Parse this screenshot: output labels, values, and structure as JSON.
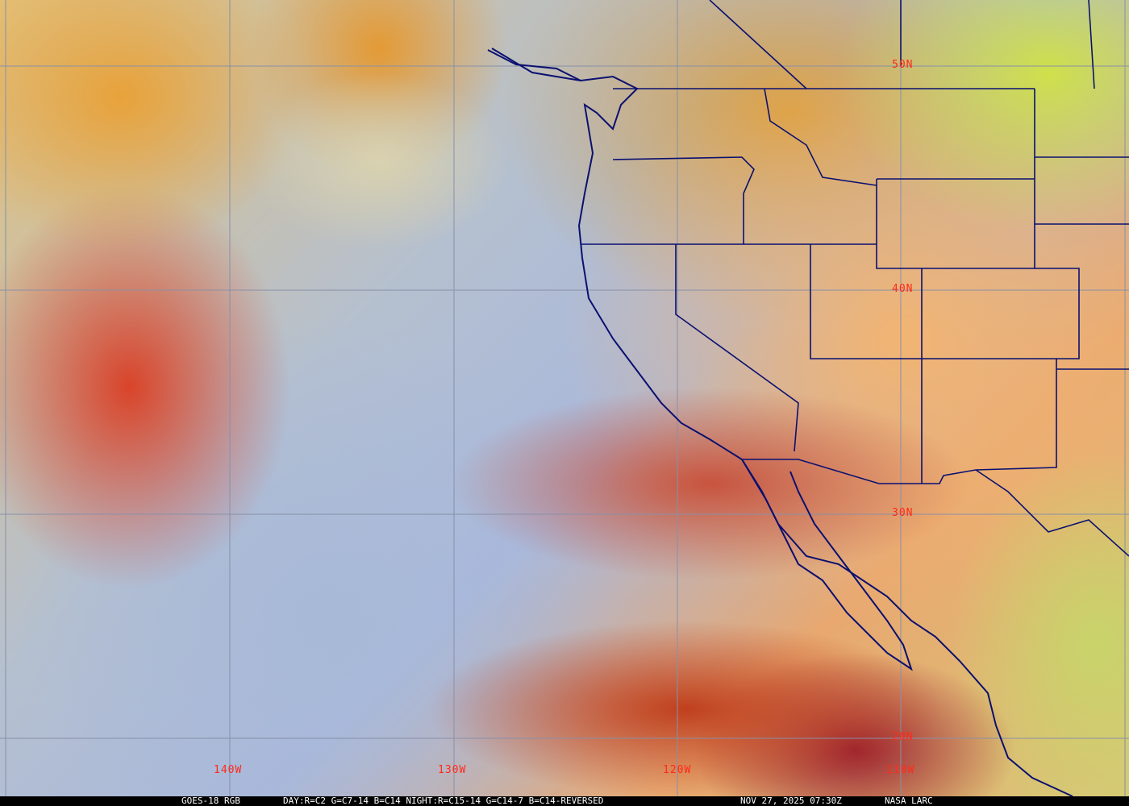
{
  "map": {
    "type": "satellite RGB composite",
    "graticule": {
      "lat_labels": [
        "50N",
        "40N",
        "30N",
        "20N"
      ],
      "lon_labels": [
        "140W",
        "130W",
        "120W",
        "110W"
      ],
      "line_color": "#8890a8",
      "label_color": "#ff2a1a"
    },
    "border_color": "#0a1070"
  },
  "caption": {
    "satellite": "GOES-18 RGB",
    "recipe": "DAY:R=C2 G=C7-14 B=C14 NIGHT:R=C15-14 G=C14-7 B=C14-REVERSED",
    "timestamp": "NOV 27, 2025 07:30Z",
    "credit": "NASA LARC"
  }
}
